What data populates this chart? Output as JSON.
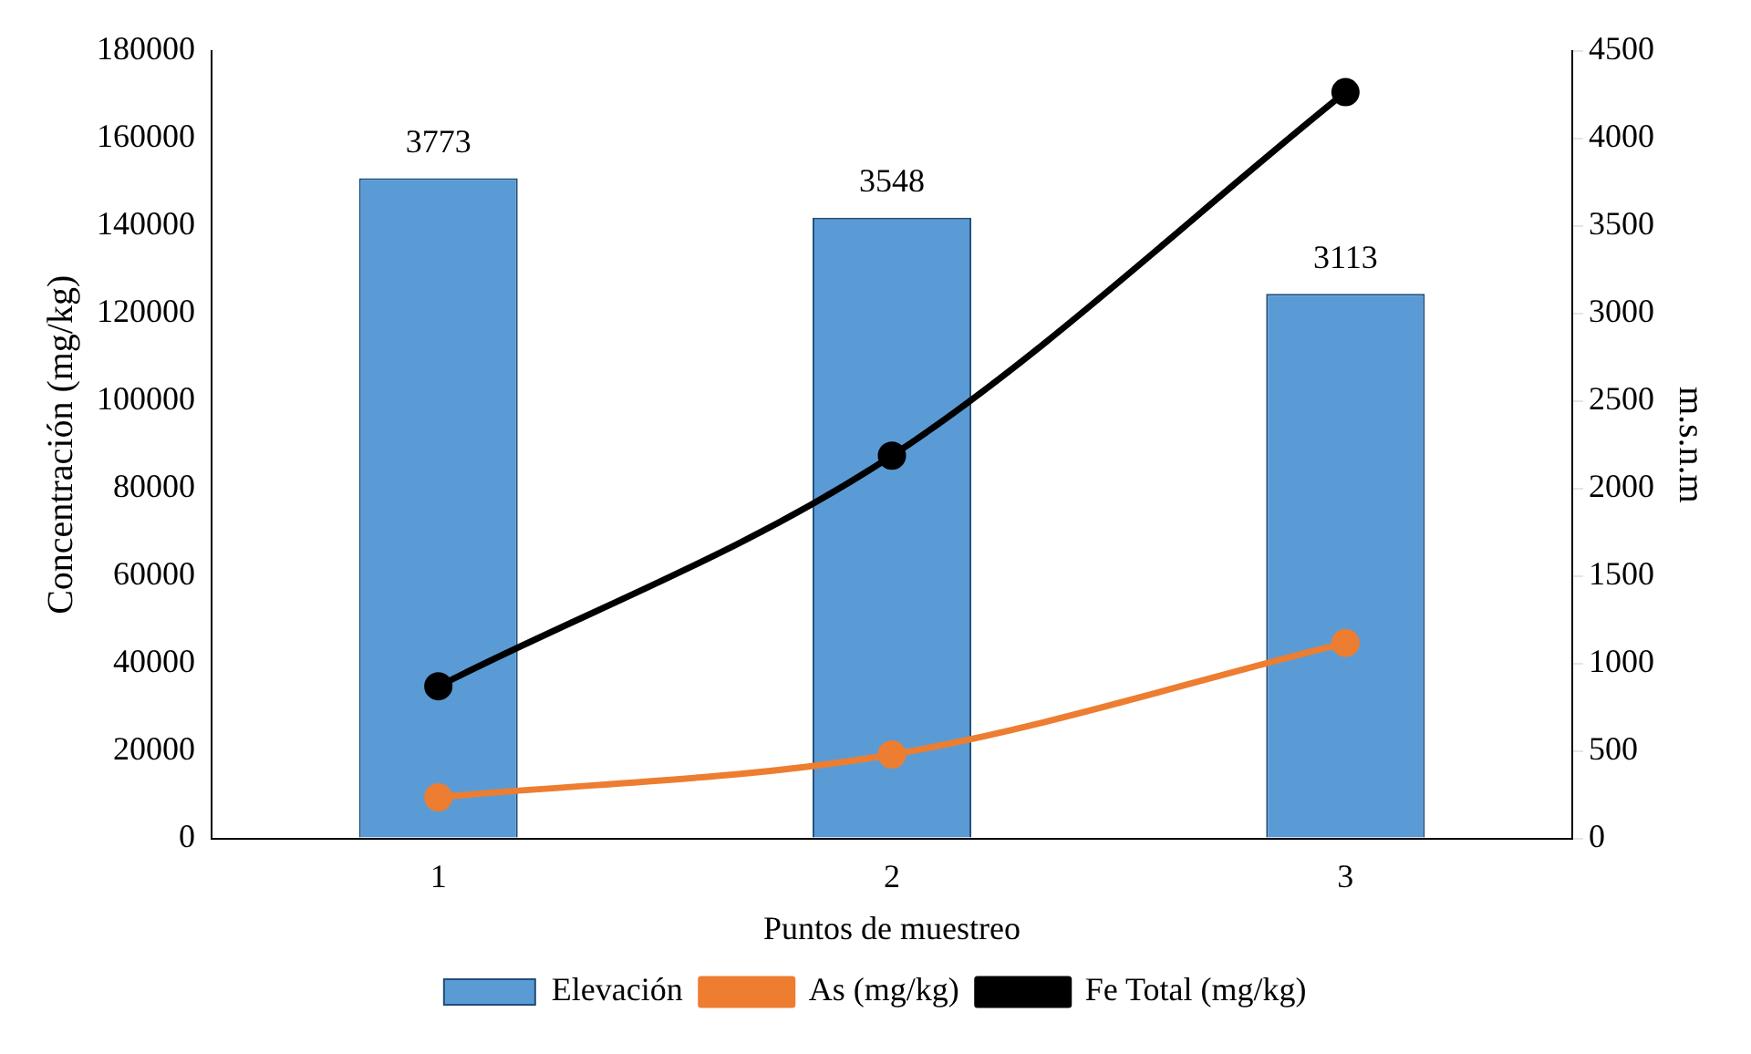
{
  "chart_data": {
    "type": "bar",
    "xlabel": "Puntos de muestreo",
    "ylabel": "Concentración (mg/kg)",
    "y2label": "m.s.n.m",
    "categories": [
      "1",
      "2",
      "3"
    ],
    "series": [
      {
        "name": "Elevación",
        "axis": "y2",
        "color": "#5b9bd5",
        "values": [
          3773,
          3548,
          3113
        ],
        "value_labels": [
          "3773",
          "3548",
          "3113"
        ]
      },
      {
        "name": "As (mg/kg)",
        "type": "line",
        "color": "#ed7d31",
        "values": [
          9400,
          19200,
          44700
        ]
      },
      {
        "name": "Fe Total (mg/kg)",
        "type": "line",
        "color": "#000000",
        "values": [
          34800,
          87500,
          170600
        ]
      }
    ],
    "ylim": [
      0,
      180000
    ],
    "yticks": [
      0,
      20000,
      40000,
      60000,
      80000,
      100000,
      120000,
      140000,
      160000,
      180000
    ],
    "y2lim": [
      0,
      4500
    ],
    "y2ticks": [
      0,
      500,
      1000,
      1500,
      2000,
      2500,
      3000,
      3500,
      4000,
      4500
    ],
    "marker": "circle",
    "line_style": "solid",
    "grid": false,
    "legend": "bottom"
  }
}
